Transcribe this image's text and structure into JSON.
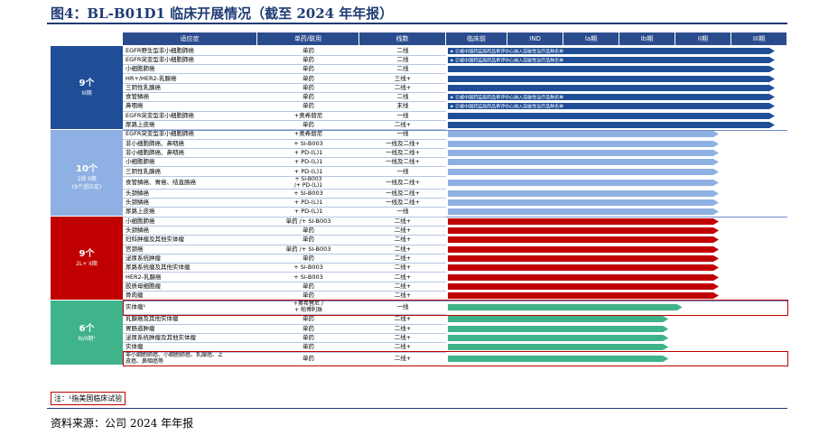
{
  "title": "图4：BL-B01D1 临床开展情况（截至 2024 年年报）",
  "source": "资料来源：公司 2024 年年报",
  "note": "注：¹指美国临床试验",
  "headers": [
    "适应症",
    "单药/联用",
    "线数",
    "临床前",
    "IND",
    "Ia期",
    "Ib期",
    "II期",
    "III期"
  ],
  "colors": {
    "dark_blue": "#1f4e96",
    "light_blue": "#8fb0e3",
    "red": "#c00000",
    "green": "#3fb389",
    "header": "#2a4b8d"
  },
  "groups": [
    {
      "count": "9个",
      "sub": "III期",
      "color": "#1f4e96"
    },
    {
      "count": "10个",
      "sub": "1线 II期\n(9个适应症)",
      "color": "#8fb0e3"
    },
    {
      "count": "9个",
      "sub": "2L+ II期",
      "color": "#c00000"
    },
    {
      "count": "6个",
      "sub": "Ib/II期¹",
      "color": "#3fb389"
    }
  ],
  "rows": [
    {
      "ind": "EGFR野生型非小细胞肺癌",
      "drug": "单药",
      "line": "二线",
      "group": 0,
      "stage": 5,
      "note": "已被中国药监局药品审评中心纳入突破性治疗品种名单"
    },
    {
      "ind": "EGFR突变型非小细胞肺癌",
      "drug": "单药",
      "line": "二线",
      "group": 0,
      "stage": 5,
      "note": "已被中国药监局药品审评中心纳入突破性治疗品种名单"
    },
    {
      "ind": "小细胞肺癌",
      "drug": "单药",
      "line": "二线",
      "group": 0,
      "stage": 5,
      "note": ""
    },
    {
      "ind": "HR+/HER2-乳腺癌",
      "drug": "单药",
      "line": "三线+",
      "group": 0,
      "stage": 5,
      "note": ""
    },
    {
      "ind": "三阴性乳腺癌",
      "drug": "单药",
      "line": "二线+",
      "group": 0,
      "stage": 5,
      "note": ""
    },
    {
      "ind": "食管鳞癌",
      "drug": "单药",
      "line": "二线",
      "group": 0,
      "stage": 5,
      "note": "已被中国药监局药品审评中心纳入突破性治疗品种名单"
    },
    {
      "ind": "鼻咽癌",
      "drug": "单药",
      "line": "末线",
      "group": 0,
      "stage": 5,
      "note": "已被中国药监局药品审评中心纳入突破性治疗品种名单"
    },
    {
      "ind": "EGFR突变型非小细胞肺癌",
      "drug": "+奥希替尼",
      "line": "一线",
      "group": 0,
      "stage": 5,
      "note": ""
    },
    {
      "ind": "尿路上皮癌",
      "drug": "单药",
      "line": "二线+",
      "group": 0,
      "stage": 5,
      "note": ""
    },
    {
      "ind": "EGFR突变型非小细胞肺癌",
      "drug": "+奥希替尼",
      "line": "一线",
      "group": 1,
      "stage": 4,
      "note": ""
    },
    {
      "ind": "非小细胞肺癌、鼻咽癌",
      "drug": "+ SI-B003",
      "line": "一线及二线+",
      "group": 1,
      "stage": 4,
      "note": ""
    },
    {
      "ind": "非小细胞肺癌、鼻咽癌",
      "drug": "+ PD-(L)1",
      "line": "一线及二线+",
      "group": 1,
      "stage": 4,
      "note": ""
    },
    {
      "ind": "小细胞肺癌",
      "drug": "+ PD-(L)1",
      "line": "一线及二线+",
      "group": 1,
      "stage": 4,
      "note": ""
    },
    {
      "ind": "三阴性乳腺癌",
      "drug": "+ PD-(L)1",
      "line": "一线",
      "group": 1,
      "stage": 4,
      "note": ""
    },
    {
      "ind": "食管鳞癌、胃癌、结直肠癌",
      "drug": "+ SI-B003\n/+ PD-(L)1",
      "line": "一线及二线+",
      "group": 1,
      "stage": 4,
      "note": ""
    },
    {
      "ind": "头颈鳞癌",
      "drug": "+ SI-B003",
      "line": "一线及二线+",
      "group": 1,
      "stage": 4,
      "note": ""
    },
    {
      "ind": "头颈鳞癌",
      "drug": "+ PD-(L)1",
      "line": "一线及二线+",
      "group": 1,
      "stage": 4,
      "note": ""
    },
    {
      "ind": "尿路上皮癌",
      "drug": "+ PD-(L)1",
      "line": "一线",
      "group": 1,
      "stage": 4,
      "note": ""
    },
    {
      "ind": "小细胞肺癌",
      "drug": "单药 /+ SI-B003",
      "line": "二线+",
      "group": 2,
      "stage": 4,
      "note": ""
    },
    {
      "ind": "头颈鳞癌",
      "drug": "单药",
      "line": "二线+",
      "group": 2,
      "stage": 4,
      "note": ""
    },
    {
      "ind": "妇科肿瘤及其他实体瘤",
      "drug": "单药",
      "line": "二线+",
      "group": 2,
      "stage": 4,
      "note": ""
    },
    {
      "ind": "宫颈癌",
      "drug": "单药 /+ SI-B003",
      "line": "二线+",
      "group": 2,
      "stage": 4,
      "note": ""
    },
    {
      "ind": "泌尿系统肿瘤",
      "drug": "单药",
      "line": "二线+",
      "group": 2,
      "stage": 4,
      "note": ""
    },
    {
      "ind": "尿路系统瘤及其他实体瘤",
      "drug": "+ SI-B003",
      "line": "二线+",
      "group": 2,
      "stage": 4,
      "note": ""
    },
    {
      "ind": "HER2-乳腺癌",
      "drug": "+ SI-B003",
      "line": "二线+",
      "group": 2,
      "stage": 4,
      "note": ""
    },
    {
      "ind": "胶质母细胞瘤",
      "drug": "单药",
      "line": "二线+",
      "group": 2,
      "stage": 4,
      "note": ""
    },
    {
      "ind": "骨肉瘤",
      "drug": "单药",
      "line": "二线+",
      "group": 2,
      "stage": 4,
      "note": ""
    },
    {
      "ind": "实体瘤¹",
      "drug": "+奥希替尼 /\n+ 帕博利珠",
      "line": "一线",
      "group": 3,
      "stage": 3.35,
      "note": ""
    },
    {
      "ind": "乳腺癌及其他实体瘤",
      "drug": "单药",
      "line": "二线+",
      "group": 3,
      "stage": 3.1,
      "note": ""
    },
    {
      "ind": "胃肠道肿瘤",
      "drug": "单药",
      "line": "二线+",
      "group": 3,
      "stage": 3.1,
      "note": ""
    },
    {
      "ind": "泌尿系统肿瘤及其他实体瘤",
      "drug": "单药",
      "line": "二线+",
      "group": 3,
      "stage": 3.1,
      "note": ""
    },
    {
      "ind": "实体瘤",
      "drug": "单药",
      "line": "二线+",
      "group": 3,
      "stage": 3.1,
      "note": ""
    },
    {
      "ind": "非小细胞肺癌、小细胞肺癌、乳腺癌、上\n皮癌、鼻咽癌等",
      "drug": "单药",
      "line": "二线+",
      "group": 3,
      "stage": 3.1,
      "note": ""
    }
  ]
}
